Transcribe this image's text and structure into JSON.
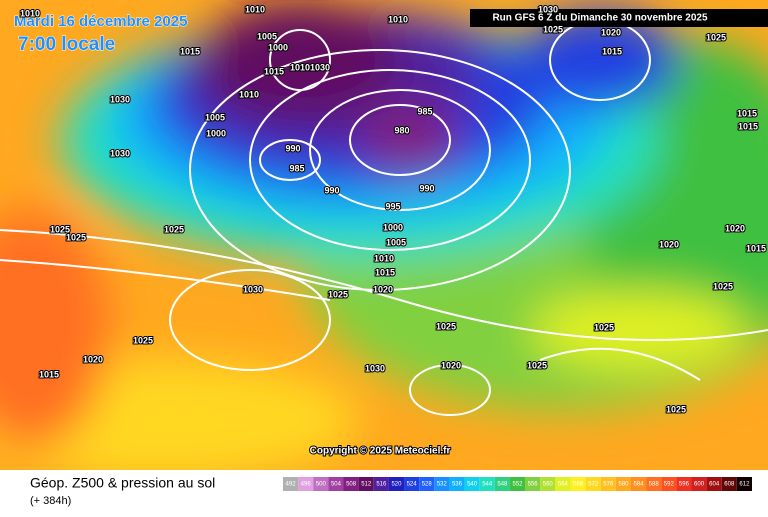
{
  "header": {
    "date": "Mardi 16 décembre 2025",
    "time": "7:00 locale",
    "run": "Run GFS 6 Z du Dimanche 30 novembre 2025"
  },
  "copyright": "Copyright © 2025 Meteociel.fr",
  "footer": {
    "title": "Géop. Z500 & pression au sol",
    "lead": "(+ 384h)"
  },
  "scale": {
    "labels": [
      "492",
      "496",
      "500",
      "504",
      "508",
      "512",
      "516",
      "520",
      "524",
      "528",
      "532",
      "536",
      "540",
      "544",
      "548",
      "552",
      "556",
      "560",
      "564",
      "568",
      "572",
      "576",
      "580",
      "584",
      "588",
      "592",
      "596",
      "600",
      "604",
      "608",
      "612"
    ],
    "colors": [
      "#b0b0b0",
      "#e0a0e0",
      "#c070c0",
      "#a040a0",
      "#802080",
      "#601060",
      "#5020a0",
      "#2020c0",
      "#2040e0",
      "#2060ff",
      "#1890ff",
      "#10b0ff",
      "#10d0f0",
      "#20e0c0",
      "#30d080",
      "#40c040",
      "#80d040",
      "#b0e030",
      "#e0f020",
      "#fff020",
      "#ffd820",
      "#ffc020",
      "#ffa820",
      "#ff9020",
      "#ff7020",
      "#ff5020",
      "#f03020",
      "#d02020",
      "#a01010",
      "#600808",
      "#100000"
    ]
  },
  "isobar_labels": [
    "1010",
    "1010",
    "1010",
    "1005",
    "1000",
    "1015",
    "1030",
    "1010",
    "1005",
    "1000",
    "985",
    "980",
    "990",
    "985",
    "990",
    "990",
    "995",
    "1000",
    "1005",
    "1010",
    "1015",
    "1020",
    "1025",
    "1030",
    "1025",
    "1025",
    "1025",
    "1030",
    "1025",
    "1020",
    "1015",
    "1030",
    "1025",
    "1020",
    "1025",
    "1025",
    "1025",
    "1020",
    "1025",
    "1020",
    "1015",
    "1015",
    "1015",
    "1020",
    "1015",
    "1025",
    "1030",
    "1025",
    "1030",
    "1015",
    "1010"
  ]
}
